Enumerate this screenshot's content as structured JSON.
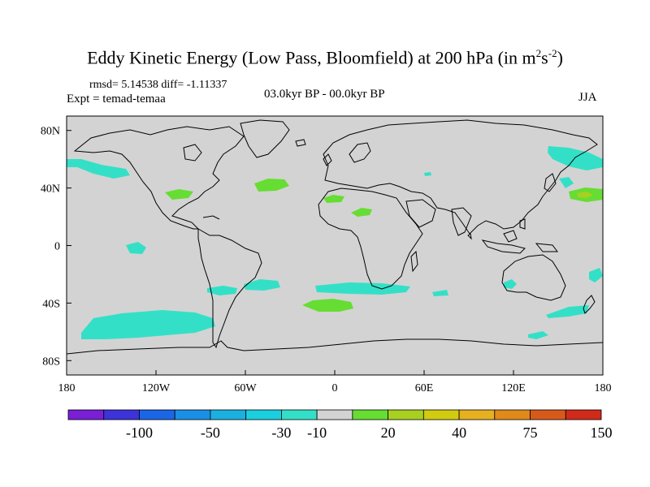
{
  "title": {
    "main": "Eddy Kinetic Energy (Low Pass, Bloomfield) at 200 hPa (in m",
    "sup1": "2",
    "mid": "s",
    "sup2": "-2",
    "end": ")"
  },
  "stats": "rmsd= 5.14538 diff= -1.11337",
  "experiment": "Expt = temad-temaa",
  "period": "03.0kyr BP - 00.0kyr BP",
  "season": "JJA",
  "colors": {
    "land_ocean_background": "#d3d3d3",
    "coastline": "#000000",
    "negative_anomaly_fill": "#33e0c7",
    "positive_anomaly_fill": "#66dd33",
    "strong_positive_fill": "#a8d020"
  },
  "axes": {
    "x_ticks": [
      "180",
      "120W",
      "60W",
      "0",
      "60E",
      "120E",
      "180"
    ],
    "y_ticks": [
      "80N",
      "40N",
      "0",
      "40S",
      "80S"
    ]
  },
  "colorbar": {
    "colors": [
      "#7a1fd6",
      "#3d33d9",
      "#1a66e6",
      "#1a8fe6",
      "#1ab0e0",
      "#1acfe0",
      "#33e0c7",
      "#d3d3d3",
      "#66dd33",
      "#a8d020",
      "#d2cc10",
      "#e6b020",
      "#e08a1a",
      "#d85a1a",
      "#d12a1a"
    ],
    "labels": [
      "-100",
      "-50",
      "-30",
      "-10",
      "20",
      "40",
      "75",
      "150"
    ]
  },
  "regions": [
    {
      "name": "north-atlantic-positive",
      "sign": "positive"
    },
    {
      "name": "south-atlantic-positive",
      "sign": "positive"
    },
    {
      "name": "north-africa-positive",
      "sign": "positive"
    },
    {
      "name": "north-pacific-positive",
      "sign": "positive"
    },
    {
      "name": "southern-ocean-pacific-negative",
      "sign": "negative"
    },
    {
      "name": "south-africa-negative",
      "sign": "negative"
    },
    {
      "name": "north-pacific-east-negative",
      "sign": "negative"
    }
  ]
}
